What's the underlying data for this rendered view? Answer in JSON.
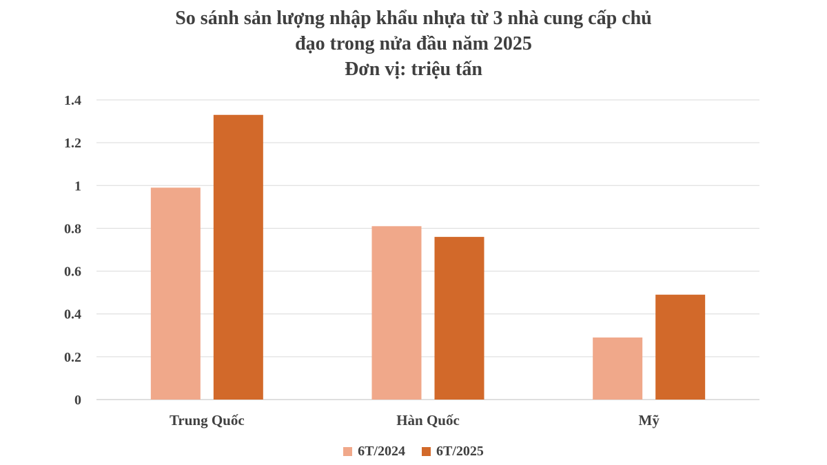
{
  "chart_data": {
    "type": "bar",
    "title_lines": [
      "So sánh sản lượng nhập khẩu nhựa từ 3 nhà cung cấp chủ",
      "đạo trong nửa đầu năm 2025",
      "Đơn vị: triệu tấn"
    ],
    "categories": [
      "Trung Quốc",
      "Hàn Quốc",
      "Mỹ"
    ],
    "series": [
      {
        "name": "6T/2024",
        "values": [
          0.99,
          0.81,
          0.29
        ],
        "color": "#f0a88a"
      },
      {
        "name": "6T/2025",
        "values": [
          1.33,
          0.76,
          0.49
        ],
        "color": "#d2692a"
      }
    ],
    "y_ticks": [
      "0",
      "0.2",
      "0.4",
      "0.6",
      "0.8",
      "1",
      "1.2",
      "1.4"
    ],
    "ylim": [
      0,
      1.4
    ],
    "grid": true,
    "legend_position": "bottom"
  }
}
